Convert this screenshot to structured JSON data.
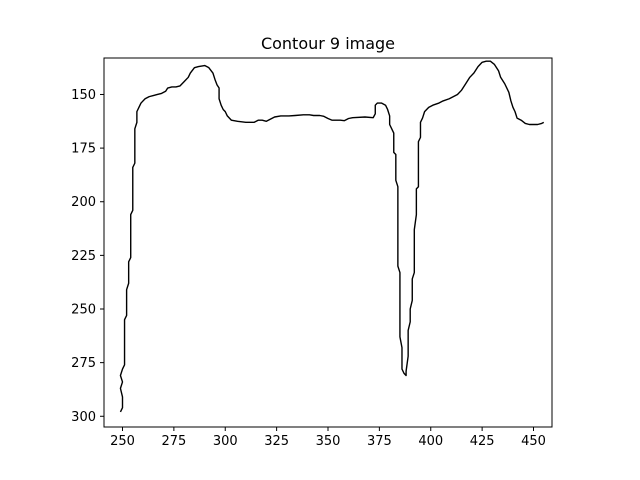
{
  "chart_data": {
    "type": "line",
    "title": "Contour 9 image",
    "xlabel": "",
    "ylabel": "",
    "xlim": [
      241,
      459
    ],
    "ylim": [
      305,
      133
    ],
    "y_inverted": true,
    "grid": false,
    "x_ticks": [
      250,
      275,
      300,
      325,
      350,
      375,
      400,
      425,
      450
    ],
    "y_ticks": [
      150,
      175,
      200,
      225,
      250,
      275,
      300
    ],
    "series": [
      {
        "color": "#000000",
        "points": [
          [
            249,
            298
          ],
          [
            250,
            296
          ],
          [
            250,
            291
          ],
          [
            249,
            287
          ],
          [
            250,
            284
          ],
          [
            249,
            281
          ],
          [
            250,
            278
          ],
          [
            251,
            276
          ],
          [
            251,
            262
          ],
          [
            251,
            255
          ],
          [
            252,
            253
          ],
          [
            252,
            246
          ],
          [
            252,
            241
          ],
          [
            253,
            238
          ],
          [
            253,
            228
          ],
          [
            254,
            226
          ],
          [
            254,
            220
          ],
          [
            254,
            206
          ],
          [
            255,
            204
          ],
          [
            255,
            192
          ],
          [
            255,
            184
          ],
          [
            256,
            182
          ],
          [
            256,
            166
          ],
          [
            257,
            163
          ],
          [
            257,
            158
          ],
          [
            258,
            156
          ],
          [
            259,
            154
          ],
          [
            261,
            152
          ],
          [
            263,
            151
          ],
          [
            265,
            150.5
          ],
          [
            267,
            150
          ],
          [
            269,
            149.5
          ],
          [
            271,
            148.5
          ],
          [
            272,
            147
          ],
          [
            274,
            146.5
          ],
          [
            276,
            146.5
          ],
          [
            278,
            146
          ],
          [
            280,
            144
          ],
          [
            282,
            142
          ],
          [
            283,
            140
          ],
          [
            285,
            137.5
          ],
          [
            287,
            137
          ],
          [
            290,
            136.5
          ],
          [
            292,
            137.5
          ],
          [
            294,
            140
          ],
          [
            295,
            143
          ],
          [
            296,
            145.5
          ],
          [
            297,
            147
          ],
          [
            297,
            152
          ],
          [
            298,
            155
          ],
          [
            299,
            157
          ],
          [
            300,
            158
          ],
          [
            301,
            160
          ],
          [
            303,
            162
          ],
          [
            306,
            162.5
          ],
          [
            310,
            163
          ],
          [
            314,
            163
          ],
          [
            316,
            162
          ],
          [
            318,
            162
          ],
          [
            320,
            162.5
          ],
          [
            322,
            161.5
          ],
          [
            324,
            160.5
          ],
          [
            327,
            160
          ],
          [
            331,
            160
          ],
          [
            334,
            159.8
          ],
          [
            338,
            159.5
          ],
          [
            341,
            159.5
          ],
          [
            343,
            159.8
          ],
          [
            346,
            159.8
          ],
          [
            348,
            160.2
          ],
          [
            350,
            161.2
          ],
          [
            352,
            162
          ],
          [
            356,
            162
          ],
          [
            358,
            162.2
          ],
          [
            360,
            161.2
          ],
          [
            362,
            160.8
          ],
          [
            368,
            160.5
          ],
          [
            372,
            160.8
          ],
          [
            373,
            159
          ],
          [
            373,
            155
          ],
          [
            374,
            154
          ],
          [
            376,
            154
          ],
          [
            378,
            155
          ],
          [
            379,
            157
          ],
          [
            380,
            160
          ],
          [
            380,
            164
          ],
          [
            382,
            168
          ],
          [
            382,
            177
          ],
          [
            383,
            178
          ],
          [
            383,
            190
          ],
          [
            384,
            193
          ],
          [
            384,
            230
          ],
          [
            385,
            233
          ],
          [
            385,
            263
          ],
          [
            386,
            268
          ],
          [
            386,
            278
          ],
          [
            387,
            280
          ],
          [
            388,
            281
          ],
          [
            388,
            279
          ],
          [
            389,
            272
          ],
          [
            389,
            260
          ],
          [
            390,
            256
          ],
          [
            390,
            250
          ],
          [
            391,
            246
          ],
          [
            391,
            236
          ],
          [
            392,
            233
          ],
          [
            392,
            213
          ],
          [
            393,
            206
          ],
          [
            393,
            194
          ],
          [
            394,
            193
          ],
          [
            394,
            172
          ],
          [
            395,
            170
          ],
          [
            395,
            163
          ],
          [
            396,
            161
          ],
          [
            397,
            158
          ],
          [
            399,
            156
          ],
          [
            401,
            155
          ],
          [
            404,
            154
          ],
          [
            406,
            153
          ],
          [
            409,
            152
          ],
          [
            411,
            151
          ],
          [
            413,
            150
          ],
          [
            415,
            148
          ],
          [
            417,
            145
          ],
          [
            419,
            142
          ],
          [
            421,
            140
          ],
          [
            423,
            137
          ],
          [
            425,
            135
          ],
          [
            427,
            134.5
          ],
          [
            429,
            134.5
          ],
          [
            431,
            136
          ],
          [
            433,
            139
          ],
          [
            434,
            142
          ],
          [
            436,
            145
          ],
          [
            438,
            149
          ],
          [
            439,
            153
          ],
          [
            440,
            156
          ],
          [
            441,
            158
          ],
          [
            442,
            161
          ],
          [
            444,
            162
          ],
          [
            446,
            163.5
          ],
          [
            448,
            164
          ],
          [
            450,
            164
          ],
          [
            452,
            164
          ],
          [
            454,
            163.5
          ],
          [
            455,
            163
          ]
        ]
      }
    ]
  }
}
